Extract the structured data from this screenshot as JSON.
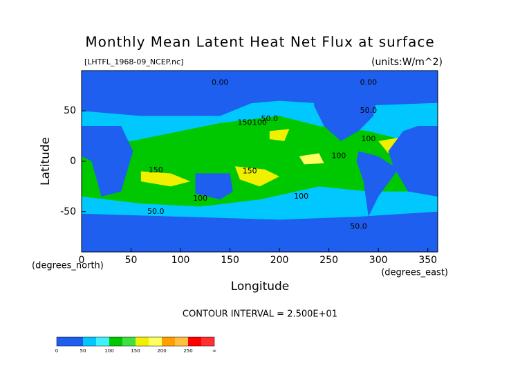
{
  "chart_data": {
    "type": "contour",
    "title": "Monthly Mean Latent Heat Net Flux at surface",
    "subtitle": "[LHTFL_1968-09_NCEP.nc]",
    "units": "(units:W/m^2)",
    "x_label": "Longitude",
    "y_label": "Latitude",
    "x_units": "(degrees_east)",
    "y_units": "(degrees_north)",
    "xlim": [
      0,
      360
    ],
    "ylim": [
      -90,
      90
    ],
    "xticks": [
      0,
      50,
      100,
      150,
      200,
      250,
      300,
      350
    ],
    "yticks": [
      -50,
      0,
      50
    ],
    "contour_interval": "CONTOUR INTERVAL = 2.500E+01",
    "contour_labels": [
      {
        "text": "0.00",
        "lon": 140,
        "lat": 78
      },
      {
        "text": "0.00",
        "lon": 290,
        "lat": 78
      },
      {
        "text": "50.0",
        "lon": 190,
        "lat": 42
      },
      {
        "text": "150",
        "lon": 165,
        "lat": 38
      },
      {
        "text": "100",
        "lon": 180,
        "lat": 38
      },
      {
        "text": "50.0",
        "lon": 290,
        "lat": 50
      },
      {
        "text": "100",
        "lon": 290,
        "lat": 22
      },
      {
        "text": "100",
        "lon": 260,
        "lat": 5
      },
      {
        "text": "150",
        "lon": 75,
        "lat": -9
      },
      {
        "text": "150",
        "lon": 170,
        "lat": -10
      },
      {
        "text": "100",
        "lon": 120,
        "lat": -37
      },
      {
        "text": "100",
        "lon": 222,
        "lat": -35
      },
      {
        "text": "50.0",
        "lon": 75,
        "lat": -50
      },
      {
        "text": "50.0",
        "lon": 280,
        "lat": -65
      }
    ],
    "colorbar": {
      "labels": [
        "0",
        "50",
        "100",
        "150",
        "200",
        "250",
        "∞"
      ],
      "colors": [
        "#1f5ff0",
        "#1f5ff0",
        "#00c8ff",
        "#40f0ff",
        "#00c800",
        "#40e040",
        "#f0f000",
        "#ffff60",
        "#ffa000",
        "#ffc040",
        "#ff0000",
        "#ff3030"
      ]
    }
  }
}
